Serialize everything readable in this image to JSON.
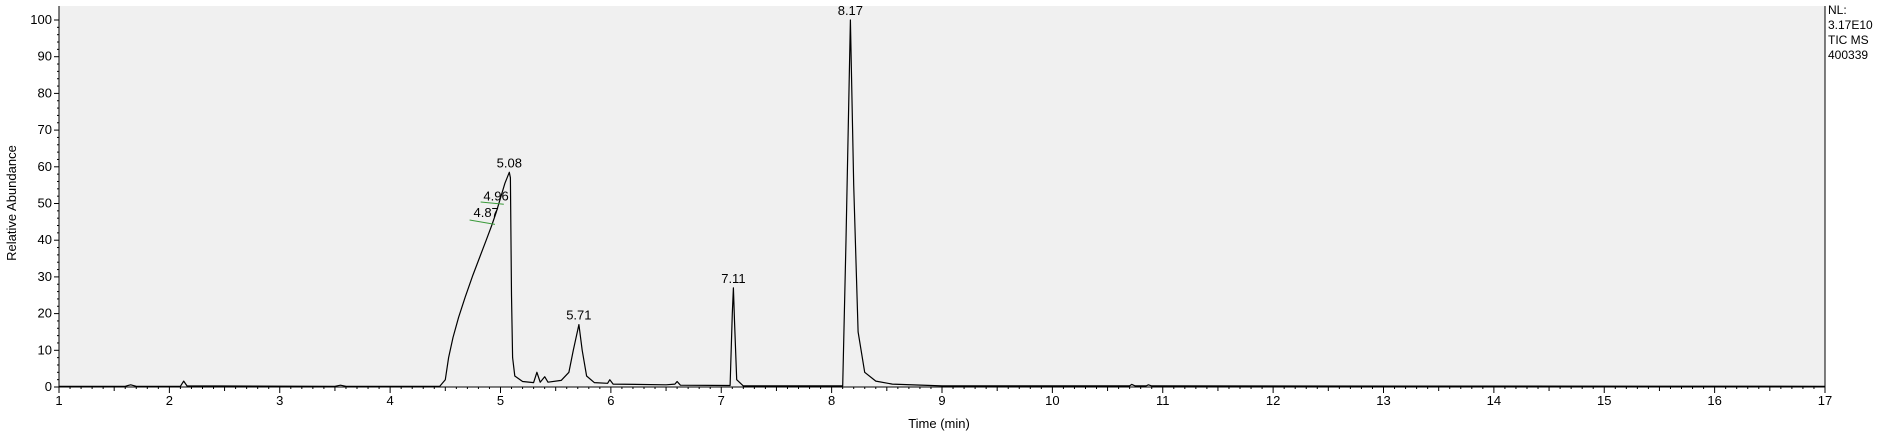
{
  "chart_data": {
    "type": "line",
    "title": "",
    "xlabel": "Time (min)",
    "ylabel": "Relative Abundance",
    "xlim": [
      1,
      17
    ],
    "ylim": [
      0,
      100
    ],
    "x_ticks": [
      1,
      2,
      3,
      4,
      5,
      6,
      7,
      8,
      9,
      10,
      11,
      12,
      13,
      14,
      15,
      16,
      17
    ],
    "y_ticks": [
      0,
      10,
      20,
      30,
      40,
      50,
      60,
      70,
      80,
      90,
      100
    ],
    "grid": false,
    "plot_background": "#f0f0f0",
    "line_color": "#000000",
    "baseline_marker_color": "#3a9a3a",
    "info_lines": [
      "NL:",
      "3.17E10",
      "TIC  MS",
      "400339"
    ],
    "series": [
      {
        "points": [
          [
            1.0,
            0.2
          ],
          [
            1.6,
            0.2
          ],
          [
            1.65,
            0.6
          ],
          [
            1.7,
            0.2
          ],
          [
            2.1,
            0.2
          ],
          [
            2.13,
            1.6
          ],
          [
            2.16,
            0.3
          ],
          [
            3.5,
            0.2
          ],
          [
            3.55,
            0.5
          ],
          [
            3.6,
            0.2
          ],
          [
            4.45,
            0.2
          ],
          [
            4.5,
            2.0
          ],
          [
            4.53,
            8.0
          ],
          [
            4.57,
            13.5
          ],
          [
            4.62,
            19.0
          ],
          [
            4.68,
            24.5
          ],
          [
            4.75,
            30.5
          ],
          [
            4.82,
            36.0
          ],
          [
            4.87,
            40.0
          ],
          [
            4.92,
            44.0
          ],
          [
            4.96,
            47.5
          ],
          [
            5.0,
            51.5
          ],
          [
            5.04,
            55.5
          ],
          [
            5.08,
            58.5
          ],
          [
            5.09,
            57.0
          ],
          [
            5.1,
            25.0
          ],
          [
            5.11,
            8.0
          ],
          [
            5.13,
            3.0
          ],
          [
            5.2,
            1.5
          ],
          [
            5.3,
            1.2
          ],
          [
            5.33,
            4.0
          ],
          [
            5.36,
            1.3
          ],
          [
            5.4,
            2.8
          ],
          [
            5.43,
            1.3
          ],
          [
            5.55,
            1.8
          ],
          [
            5.62,
            4.0
          ],
          [
            5.66,
            10.0
          ],
          [
            5.71,
            17.0
          ],
          [
            5.74,
            10.0
          ],
          [
            5.78,
            3.0
          ],
          [
            5.85,
            1.2
          ],
          [
            5.97,
            1.0
          ],
          [
            5.99,
            2.0
          ],
          [
            6.02,
            0.8
          ],
          [
            6.5,
            0.6
          ],
          [
            6.58,
            0.8
          ],
          [
            6.6,
            1.5
          ],
          [
            6.63,
            0.5
          ],
          [
            7.08,
            0.4
          ],
          [
            7.1,
            20.0
          ],
          [
            7.11,
            27.0
          ],
          [
            7.12,
            18.0
          ],
          [
            7.14,
            2.0
          ],
          [
            7.2,
            0.3
          ],
          [
            8.1,
            0.3
          ],
          [
            8.13,
            40.0
          ],
          [
            8.17,
            100.0
          ],
          [
            8.2,
            55.0
          ],
          [
            8.24,
            15.0
          ],
          [
            8.3,
            4.0
          ],
          [
            8.4,
            1.6
          ],
          [
            8.55,
            0.8
          ],
          [
            9.0,
            0.3
          ],
          [
            10.7,
            0.3
          ],
          [
            10.72,
            0.7
          ],
          [
            10.75,
            0.3
          ],
          [
            10.85,
            0.3
          ],
          [
            10.87,
            0.6
          ],
          [
            10.9,
            0.3
          ],
          [
            17.0,
            0.2
          ]
        ]
      }
    ],
    "peak_labels": [
      {
        "text": "8.17",
        "x": 8.17,
        "y": 100
      },
      {
        "text": "5.08",
        "x": 5.08,
        "y": 58.5
      },
      {
        "text": "4.96",
        "x": 4.96,
        "y": 49.5
      },
      {
        "text": "4.87",
        "x": 4.87,
        "y": 45.0
      },
      {
        "text": "7.11",
        "x": 7.11,
        "y": 27
      },
      {
        "text": "5.71",
        "x": 5.71,
        "y": 17
      }
    ]
  }
}
